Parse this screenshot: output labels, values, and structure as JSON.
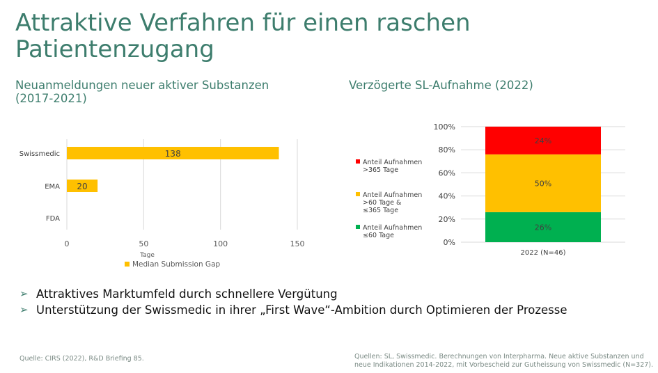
{
  "title": "Attraktive Verfahren für einen raschen Patientenzugang",
  "left_subtitle": "Neuanmeldungen neuer aktiver Substanzen (2017-2021)",
  "right_subtitle": "Verzögerte SL-Aufnahme (2022)",
  "bullets": [
    "Attraktives Marktumfeld durch schnellere Vergütung",
    "Unterstützung der Swissmedic in ihrer „First Wave“-Ambition durch Optimieren der Prozesse"
  ],
  "sources": {
    "left": "Quelle: CIRS (2022), R&D Briefing 85.",
    "right": "Quellen: SL, Swissmedic. Berechnungen von Interpharma. Neue aktive Substanzen und neue Indikationen 2014-2022, mit Vorbescheid zur Gutheissung von Swissmedic (N=327)."
  },
  "colors": {
    "title": "#3d7d6d",
    "bar": "#ffc000",
    "red": "#ff0000",
    "yellow": "#ffc000",
    "green": "#00b050"
  },
  "chart_data": [
    {
      "type": "bar",
      "orientation": "horizontal",
      "categories": [
        "Swissmedic",
        "EMA",
        "FDA"
      ],
      "series": [
        {
          "name": "Median Submission Gap",
          "values": [
            138,
            20,
            0
          ]
        }
      ],
      "data_labels": [
        "138",
        "20",
        ""
      ],
      "xlabel": "Tage",
      "xlim": [
        0,
        150
      ],
      "xticks": [
        0,
        50,
        100,
        150
      ],
      "grid": true,
      "legend": "bottom"
    },
    {
      "type": "bar",
      "stacked": true,
      "categories": [
        "2022 (N=46)"
      ],
      "series": [
        {
          "name": "Anteil Aufnahmen ≤60 Tage",
          "values": [
            26
          ],
          "label": "26%"
        },
        {
          "name": "Anteil Aufnahmen >60 Tage & ≤365 Tage",
          "values": [
            50
          ],
          "label": "50%"
        },
        {
          "name": "Anteil Aufnahmen >365 Tage",
          "values": [
            24
          ],
          "label": "24%"
        }
      ],
      "ylim": [
        0,
        100
      ],
      "yticks": [
        "0%",
        "20%",
        "40%",
        "60%",
        "80%",
        "100%"
      ],
      "legend": "left",
      "grid": true
    }
  ]
}
